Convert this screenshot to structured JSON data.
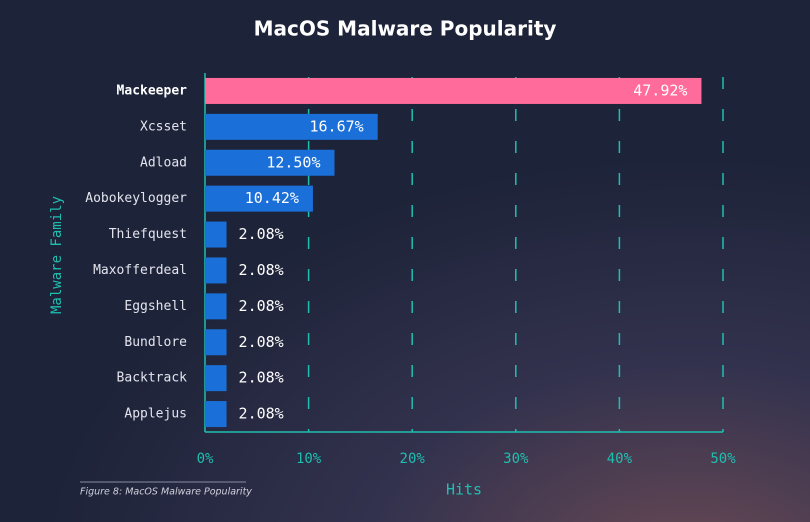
{
  "chart_data": {
    "type": "hbar",
    "title": "MacOS Malware Popularity",
    "x_label": "Hits",
    "y_label": "Malware Family",
    "caption": "Figure 8: MacOS Malware Popularity",
    "categories": [
      "Mackeeper",
      "Xcsset",
      "Adload",
      "Aobokeylogger",
      "Thiefquest",
      "Maxofferdeal",
      "Eggshell",
      "Bundlore",
      "Backtrack",
      "Applejus"
    ],
    "values": [
      47.92,
      16.67,
      12.5,
      10.42,
      2.08,
      2.08,
      2.08,
      2.08,
      2.08,
      2.08
    ],
    "value_labels": [
      "47.92%",
      "16.67%",
      "12.50%",
      "10.42%",
      "2.08%",
      "2.08%",
      "2.08%",
      "2.08%",
      "2.08%",
      "2.08%"
    ],
    "colors": [
      "#ff6b9b",
      "#1a6fd8",
      "#1a6fd8",
      "#1a6fd8",
      "#1a6fd8",
      "#1a6fd8",
      "#1a6fd8",
      "#1a6fd8",
      "#1a6fd8",
      "#1a6fd8"
    ],
    "xlim": [
      0,
      50
    ],
    "xticks": [
      {
        "value": 0,
        "label": "0%"
      },
      {
        "value": 10,
        "label": "10%"
      },
      {
        "value": 20,
        "label": "20%"
      },
      {
        "value": 30,
        "label": "30%"
      },
      {
        "value": 40,
        "label": "40%"
      },
      {
        "value": 50,
        "label": "50%"
      }
    ],
    "grid": true
  }
}
